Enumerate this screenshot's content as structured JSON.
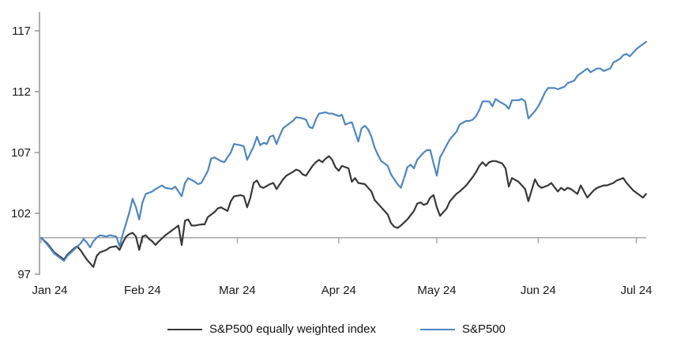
{
  "chart_data": {
    "type": "line",
    "title": "",
    "x_axis": {
      "unit": "days since 2024-01-01",
      "tick_labels": [
        "Jan 24",
        "Feb 24",
        "Mar 24",
        "Apr 24",
        "May 24",
        "Jun 24",
        "Jul 24"
      ],
      "tick_days": [
        0,
        31,
        60,
        91,
        121,
        152,
        182
      ],
      "range_days": [
        0,
        185
      ]
    },
    "y_axis": {
      "ticks": [
        97,
        102,
        107,
        112,
        117
      ],
      "range": [
        97,
        118.6
      ]
    },
    "baseline_value": 100,
    "grid": "off",
    "legend_position": "bottom",
    "colors": {
      "axis": "#9b9b9b",
      "baseline": "#a8a8a8",
      "tick_text": "#1a1a1a"
    },
    "series": [
      {
        "name": "S&P500 equally weighted index",
        "color": "#383838",
        "points": [
          [
            0,
            100
          ],
          [
            2,
            99.5
          ],
          [
            4,
            98.8
          ],
          [
            6,
            98.4
          ],
          [
            7,
            98.2
          ],
          [
            8,
            98.6
          ],
          [
            10,
            99.1
          ],
          [
            11,
            99.3
          ],
          [
            12,
            99
          ],
          [
            13,
            98.6
          ],
          [
            14,
            98.2
          ],
          [
            16,
            97.6
          ],
          [
            17,
            98.5
          ],
          [
            18,
            98.8
          ],
          [
            20,
            99
          ],
          [
            21,
            99.2
          ],
          [
            23,
            99.3
          ],
          [
            24,
            99
          ],
          [
            25,
            99.6
          ],
          [
            26,
            100.1
          ],
          [
            27,
            100.3
          ],
          [
            28,
            100.4
          ],
          [
            29,
            100.1
          ],
          [
            30,
            99
          ],
          [
            31,
            100.1
          ],
          [
            32,
            100.2
          ],
          [
            33,
            99.9
          ],
          [
            34,
            99.7
          ],
          [
            35,
            99.4
          ],
          [
            36,
            99.7
          ],
          [
            38,
            100.2
          ],
          [
            39,
            100.4
          ],
          [
            40,
            100.6
          ],
          [
            41,
            100.8
          ],
          [
            42,
            101
          ],
          [
            43,
            99.4
          ],
          [
            44,
            101.4
          ],
          [
            45,
            101.5
          ],
          [
            46,
            101
          ],
          [
            47,
            101
          ],
          [
            49,
            101.1
          ],
          [
            50,
            101.1
          ],
          [
            51,
            101.7
          ],
          [
            53,
            102.1
          ],
          [
            54,
            102.4
          ],
          [
            55,
            102.5
          ],
          [
            57,
            102.2
          ],
          [
            58,
            103
          ],
          [
            59,
            103.4
          ],
          [
            61,
            103.5
          ],
          [
            62,
            103.4
          ],
          [
            63,
            102.5
          ],
          [
            64,
            103.3
          ],
          [
            65,
            104.5
          ],
          [
            66,
            104.7
          ],
          [
            67,
            104.2
          ],
          [
            68,
            104.1
          ],
          [
            70,
            104.4
          ],
          [
            71,
            104.5
          ],
          [
            72,
            104
          ],
          [
            73,
            104.4
          ],
          [
            74,
            104.8
          ],
          [
            75,
            105.1
          ],
          [
            77,
            105.4
          ],
          [
            78,
            105.6
          ],
          [
            79,
            105.5
          ],
          [
            80,
            105.2
          ],
          [
            81,
            105.1
          ],
          [
            82,
            105.5
          ],
          [
            83,
            105.9
          ],
          [
            84,
            106.2
          ],
          [
            85,
            106.4
          ],
          [
            86,
            106.2
          ],
          [
            87,
            106.5
          ],
          [
            88,
            106.7
          ],
          [
            89,
            106.4
          ],
          [
            90,
            105.8
          ],
          [
            91,
            105.5
          ],
          [
            92,
            105.9
          ],
          [
            94,
            105.7
          ],
          [
            95,
            104.6
          ],
          [
            96,
            104.9
          ],
          [
            97,
            104.5
          ],
          [
            99,
            104.4
          ],
          [
            100,
            104.1
          ],
          [
            101,
            103.8
          ],
          [
            102,
            103.1
          ],
          [
            104,
            102.5
          ],
          [
            106,
            101.9
          ],
          [
            107,
            101.2
          ],
          [
            108,
            100.9
          ],
          [
            109,
            100.8
          ],
          [
            110,
            101
          ],
          [
            112,
            101.5
          ],
          [
            114,
            102.2
          ],
          [
            115,
            102.8
          ],
          [
            116,
            102.9
          ],
          [
            117,
            102.7
          ],
          [
            118,
            102.8
          ],
          [
            119,
            103.3
          ],
          [
            120,
            103.5
          ],
          [
            121,
            102.5
          ],
          [
            122,
            101.8
          ],
          [
            124,
            102.4
          ],
          [
            125,
            103
          ],
          [
            126,
            103.3
          ],
          [
            127,
            103.6
          ],
          [
            128,
            103.8
          ],
          [
            130,
            104.3
          ],
          [
            132,
            105
          ],
          [
            133,
            105.4
          ],
          [
            134,
            105.9
          ],
          [
            135,
            106.2
          ],
          [
            136,
            105.9
          ],
          [
            137,
            106.2
          ],
          [
            138,
            106.3
          ],
          [
            139,
            106.3
          ],
          [
            140,
            106.2
          ],
          [
            141,
            106.1
          ],
          [
            142,
            105.7
          ],
          [
            143,
            104.2
          ],
          [
            144,
            104.9
          ],
          [
            146,
            104.6
          ],
          [
            147,
            104.3
          ],
          [
            148,
            104
          ],
          [
            149,
            103
          ],
          [
            151,
            104.8
          ],
          [
            152,
            104.3
          ],
          [
            153,
            104.1
          ],
          [
            155,
            104.3
          ],
          [
            156,
            104.5
          ],
          [
            158,
            103.8
          ],
          [
            159,
            104.1
          ],
          [
            160,
            103.9
          ],
          [
            161,
            104.1
          ],
          [
            162,
            104
          ],
          [
            164,
            103.6
          ],
          [
            165,
            104.3
          ],
          [
            167,
            103.3
          ],
          [
            168,
            103.6
          ],
          [
            169,
            103.9
          ],
          [
            170,
            104.1
          ],
          [
            172,
            104.3
          ],
          [
            173,
            104.3
          ],
          [
            175,
            104.5
          ],
          [
            176,
            104.7
          ],
          [
            178,
            104.9
          ],
          [
            179,
            104.5
          ],
          [
            180,
            104.2
          ],
          [
            181,
            103.9
          ],
          [
            183,
            103.5
          ],
          [
            184,
            103.3
          ],
          [
            185,
            103.6
          ]
        ]
      },
      {
        "name": "S&P500",
        "color": "#4f86c0",
        "points": [
          [
            0,
            100
          ],
          [
            2,
            99.4
          ],
          [
            4,
            98.7
          ],
          [
            6,
            98.3
          ],
          [
            7,
            98.1
          ],
          [
            8,
            98.5
          ],
          [
            10,
            99
          ],
          [
            12,
            99.5
          ],
          [
            13,
            99.9
          ],
          [
            14,
            99.6
          ],
          [
            15,
            99.2
          ],
          [
            16,
            99.7
          ],
          [
            17,
            100
          ],
          [
            18,
            100.2
          ],
          [
            20,
            100.1
          ],
          [
            21,
            100.2
          ],
          [
            23,
            100.1
          ],
          [
            24,
            99.3
          ],
          [
            25,
            100.3
          ],
          [
            26,
            101.2
          ],
          [
            27,
            102.1
          ],
          [
            28,
            103.2
          ],
          [
            29,
            102.5
          ],
          [
            30,
            101.5
          ],
          [
            31,
            102.9
          ],
          [
            32,
            103.6
          ],
          [
            34,
            103.8
          ],
          [
            35,
            104
          ],
          [
            37,
            104.3
          ],
          [
            38,
            104.1
          ],
          [
            40,
            104
          ],
          [
            41,
            104.2
          ],
          [
            43,
            103.4
          ],
          [
            44,
            104.5
          ],
          [
            45,
            104.9
          ],
          [
            47,
            104.6
          ],
          [
            48,
            104.4
          ],
          [
            49,
            104.5
          ],
          [
            51,
            105.5
          ],
          [
            52,
            106.5
          ],
          [
            53,
            106.6
          ],
          [
            55,
            106.3
          ],
          [
            56,
            106.2
          ],
          [
            58,
            107
          ],
          [
            59,
            107.7
          ],
          [
            61,
            107.6
          ],
          [
            62,
            107.5
          ],
          [
            63,
            106.4
          ],
          [
            65,
            107.5
          ],
          [
            66,
            108.3
          ],
          [
            67,
            107.6
          ],
          [
            68,
            107.8
          ],
          [
            69,
            107.7
          ],
          [
            70,
            108.3
          ],
          [
            71,
            108.4
          ],
          [
            72,
            107.7
          ],
          [
            73,
            108.4
          ],
          [
            74,
            109
          ],
          [
            76,
            109.4
          ],
          [
            77,
            109.6
          ],
          [
            78,
            109.9
          ],
          [
            80,
            109.8
          ],
          [
            81,
            109.7
          ],
          [
            82,
            109.1
          ],
          [
            83,
            109
          ],
          [
            84,
            109.7
          ],
          [
            85,
            110.2
          ],
          [
            87,
            110.3
          ],
          [
            88,
            110.2
          ],
          [
            89,
            110.2
          ],
          [
            91,
            110
          ],
          [
            92,
            110.1
          ],
          [
            93,
            109.3
          ],
          [
            94,
            109.4
          ],
          [
            95,
            109.5
          ],
          [
            97,
            107.9
          ],
          [
            98,
            109
          ],
          [
            99,
            109.2
          ],
          [
            100,
            108.9
          ],
          [
            101,
            108.3
          ],
          [
            102,
            107.4
          ],
          [
            103,
            106.8
          ],
          [
            104,
            106.3
          ],
          [
            106,
            105.9
          ],
          [
            107,
            105.2
          ],
          [
            108,
            104.8
          ],
          [
            109,
            104.4
          ],
          [
            110,
            104.1
          ],
          [
            111,
            104.9
          ],
          [
            112,
            105.8
          ],
          [
            113,
            106
          ],
          [
            114,
            105.7
          ],
          [
            115,
            106.4
          ],
          [
            117,
            107
          ],
          [
            118,
            107.2
          ],
          [
            119,
            107.2
          ],
          [
            120,
            106.1
          ],
          [
            121,
            105.1
          ],
          [
            122,
            106.6
          ],
          [
            123,
            107.1
          ],
          [
            124,
            107.6
          ],
          [
            125,
            108.1
          ],
          [
            127,
            108.7
          ],
          [
            128,
            109.3
          ],
          [
            130,
            109.6
          ],
          [
            131,
            109.6
          ],
          [
            132,
            109.7
          ],
          [
            133,
            110
          ],
          [
            134,
            110.5
          ],
          [
            135,
            111.2
          ],
          [
            137,
            111.2
          ],
          [
            138,
            110.8
          ],
          [
            139,
            111.4
          ],
          [
            140,
            111.2
          ],
          [
            142,
            110.9
          ],
          [
            143,
            110.6
          ],
          [
            144,
            111.3
          ],
          [
            146,
            111.3
          ],
          [
            147,
            111.4
          ],
          [
            148,
            111.2
          ],
          [
            149,
            109.8
          ],
          [
            151,
            110.4
          ],
          [
            152,
            110.8
          ],
          [
            153,
            111.3
          ],
          [
            154,
            111.9
          ],
          [
            155,
            112.3
          ],
          [
            157,
            112.3
          ],
          [
            158,
            112.2
          ],
          [
            160,
            112.4
          ],
          [
            161,
            112.7
          ],
          [
            163,
            112.9
          ],
          [
            164,
            113.3
          ],
          [
            166,
            113.7
          ],
          [
            167,
            113.9
          ],
          [
            168,
            113.6
          ],
          [
            170,
            113.9
          ],
          [
            171,
            113.9
          ],
          [
            172,
            113.7
          ],
          [
            174,
            113.9
          ],
          [
            175,
            114.4
          ],
          [
            177,
            114.7
          ],
          [
            178,
            115
          ],
          [
            179,
            115.1
          ],
          [
            180,
            114.9
          ],
          [
            182,
            115.5
          ],
          [
            183,
            115.7
          ],
          [
            185,
            116.1
          ]
        ]
      }
    ]
  }
}
